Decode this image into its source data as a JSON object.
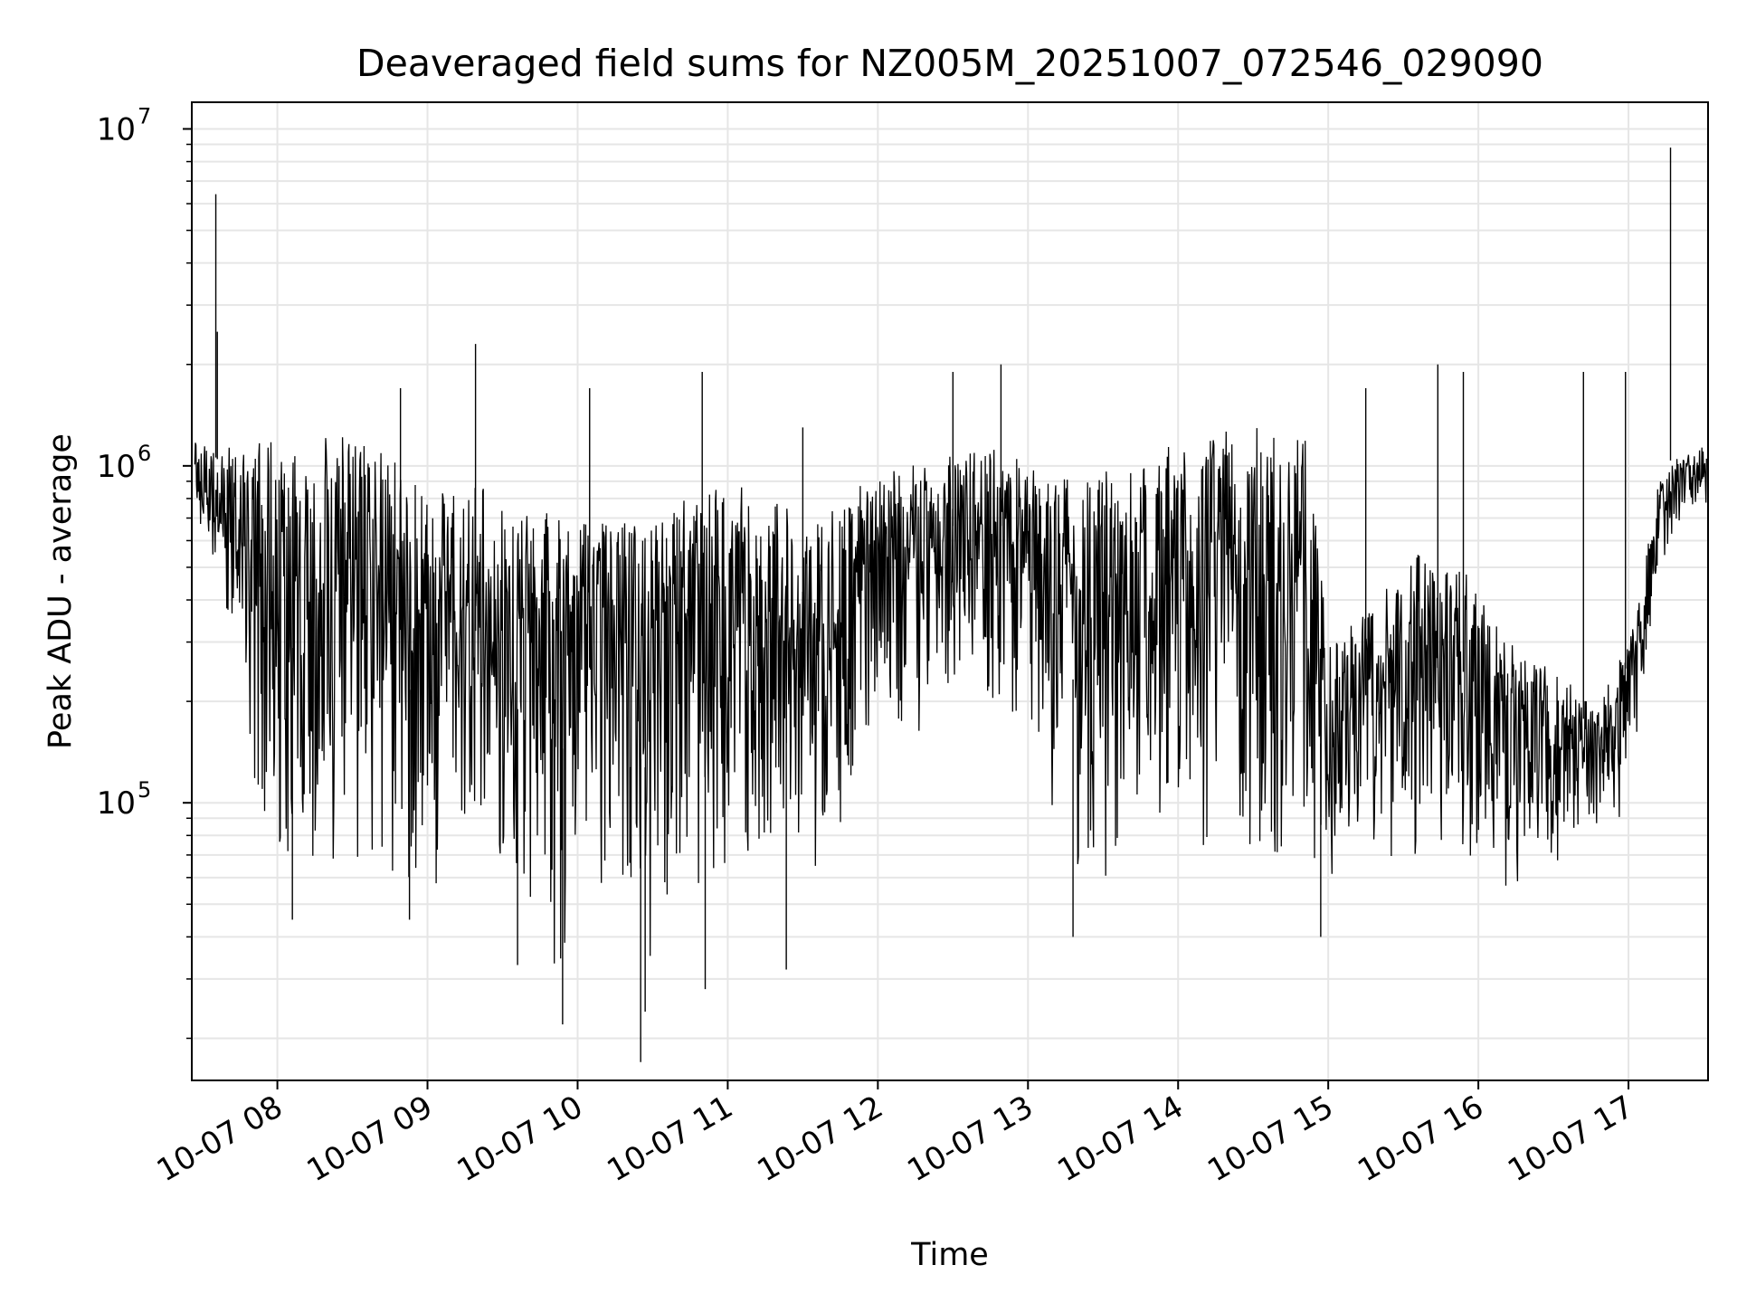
{
  "chart_data": {
    "type": "line",
    "title": "Deaveraged field sums for NZ005M_20251007_072546_029090",
    "xlabel": "Time",
    "ylabel": "Peak ADU - average",
    "yscale": "log",
    "ylim": [
      15000,
      12000000
    ],
    "xlim_hours": [
      7.43,
      17.53
    ],
    "grid": true,
    "line_color": "#000000",
    "grid_color": "#e6e6e6",
    "x_ticks": [
      {
        "hour": 8,
        "label": "10-07 08"
      },
      {
        "hour": 9,
        "label": "10-07 09"
      },
      {
        "hour": 10,
        "label": "10-07 10"
      },
      {
        "hour": 11,
        "label": "10-07 11"
      },
      {
        "hour": 12,
        "label": "10-07 12"
      },
      {
        "hour": 13,
        "label": "10-07 13"
      },
      {
        "hour": 14,
        "label": "10-07 14"
      },
      {
        "hour": 15,
        "label": "10-07 15"
      },
      {
        "hour": 16,
        "label": "10-07 16"
      },
      {
        "hour": 17,
        "label": "10-07 17"
      }
    ],
    "y_ticks": [
      {
        "value": 100000,
        "base": "10",
        "exp": "5"
      },
      {
        "value": 1000000,
        "base": "10",
        "exp": "6"
      },
      {
        "value": 10000000,
        "base": "10",
        "exp": "7"
      }
    ],
    "series": [
      {
        "name": "deaveraged field sums",
        "envelope": [
          {
            "hour": 7.45,
            "low": 600000,
            "high": 1250000
          },
          {
            "hour": 7.6,
            "low": 500000,
            "high": 1100000
          },
          {
            "hour": 7.8,
            "low": 120000,
            "high": 1200000
          },
          {
            "hour": 8.0,
            "low": 70000,
            "high": 1250000
          },
          {
            "hour": 8.3,
            "low": 60000,
            "high": 1250000
          },
          {
            "hour": 8.6,
            "low": 70000,
            "high": 1200000
          },
          {
            "hour": 8.85,
            "low": 50000,
            "high": 1000000
          },
          {
            "hour": 9.0,
            "low": 45000,
            "high": 800000
          },
          {
            "hour": 9.3,
            "low": 60000,
            "high": 900000
          },
          {
            "hour": 9.6,
            "low": 45000,
            "high": 800000
          },
          {
            "hour": 9.9,
            "low": 30000,
            "high": 700000
          },
          {
            "hour": 10.2,
            "low": 60000,
            "high": 700000
          },
          {
            "hour": 10.45,
            "low": 25000,
            "high": 650000
          },
          {
            "hour": 10.7,
            "low": 50000,
            "high": 800000
          },
          {
            "hour": 11.0,
            "low": 60000,
            "high": 900000
          },
          {
            "hour": 11.3,
            "low": 60000,
            "high": 800000
          },
          {
            "hour": 11.6,
            "low": 60000,
            "high": 700000
          },
          {
            "hour": 11.9,
            "low": 100000,
            "high": 900000
          },
          {
            "hour": 12.2,
            "low": 150000,
            "high": 1000000
          },
          {
            "hour": 12.5,
            "low": 200000,
            "high": 1100000
          },
          {
            "hour": 12.8,
            "low": 200000,
            "high": 1150000
          },
          {
            "hour": 13.0,
            "low": 150000,
            "high": 1000000
          },
          {
            "hour": 13.3,
            "low": 60000,
            "high": 900000
          },
          {
            "hour": 13.6,
            "low": 60000,
            "high": 1000000
          },
          {
            "hour": 13.9,
            "low": 60000,
            "high": 1150000
          },
          {
            "hour": 14.2,
            "low": 55000,
            "high": 1250000
          },
          {
            "hour": 14.5,
            "low": 50000,
            "high": 1300000
          },
          {
            "hour": 14.85,
            "low": 50000,
            "high": 1250000
          },
          {
            "hour": 15.0,
            "low": 45000,
            "high": 300000
          },
          {
            "hour": 15.3,
            "low": 60000,
            "high": 400000
          },
          {
            "hour": 15.6,
            "low": 60000,
            "high": 550000
          },
          {
            "hour": 15.9,
            "low": 60000,
            "high": 500000
          },
          {
            "hour": 16.2,
            "low": 55000,
            "high": 300000
          },
          {
            "hour": 16.5,
            "low": 60000,
            "high": 250000
          },
          {
            "hour": 16.75,
            "low": 80000,
            "high": 200000
          },
          {
            "hour": 16.9,
            "low": 70000,
            "high": 250000
          },
          {
            "hour": 17.05,
            "low": 150000,
            "high": 350000
          },
          {
            "hour": 17.2,
            "low": 400000,
            "high": 900000
          },
          {
            "hour": 17.35,
            "low": 700000,
            "high": 1100000
          },
          {
            "hour": 17.52,
            "low": 750000,
            "high": 1150000
          }
        ],
        "spikes": [
          {
            "hour": 7.59,
            "value": 6400000
          },
          {
            "hour": 7.6,
            "value": 2500000
          },
          {
            "hour": 8.82,
            "value": 1700000
          },
          {
            "hour": 9.32,
            "value": 2300000
          },
          {
            "hour": 10.08,
            "value": 1700000
          },
          {
            "hour": 10.83,
            "value": 1900000
          },
          {
            "hour": 11.5,
            "value": 1300000
          },
          {
            "hour": 12.5,
            "value": 1900000
          },
          {
            "hour": 12.82,
            "value": 2000000
          },
          {
            "hour": 15.25,
            "value": 1700000
          },
          {
            "hour": 15.73,
            "value": 2000000
          },
          {
            "hour": 15.9,
            "value": 1900000
          },
          {
            "hour": 16.7,
            "value": 1900000
          },
          {
            "hour": 16.98,
            "value": 1900000
          },
          {
            "hour": 17.28,
            "value": 8800000
          },
          {
            "hour": 9.9,
            "value": 22000
          },
          {
            "hour": 10.42,
            "value": 17000
          },
          {
            "hour": 10.45,
            "value": 24000
          },
          {
            "hour": 11.39,
            "value": 32000
          },
          {
            "hour": 8.1,
            "value": 45000
          },
          {
            "hour": 8.88,
            "value": 45000
          },
          {
            "hour": 9.6,
            "value": 33000
          },
          {
            "hour": 10.85,
            "value": 28000
          },
          {
            "hour": 13.3,
            "value": 40000
          },
          {
            "hour": 14.95,
            "value": 40000
          }
        ]
      }
    ]
  }
}
